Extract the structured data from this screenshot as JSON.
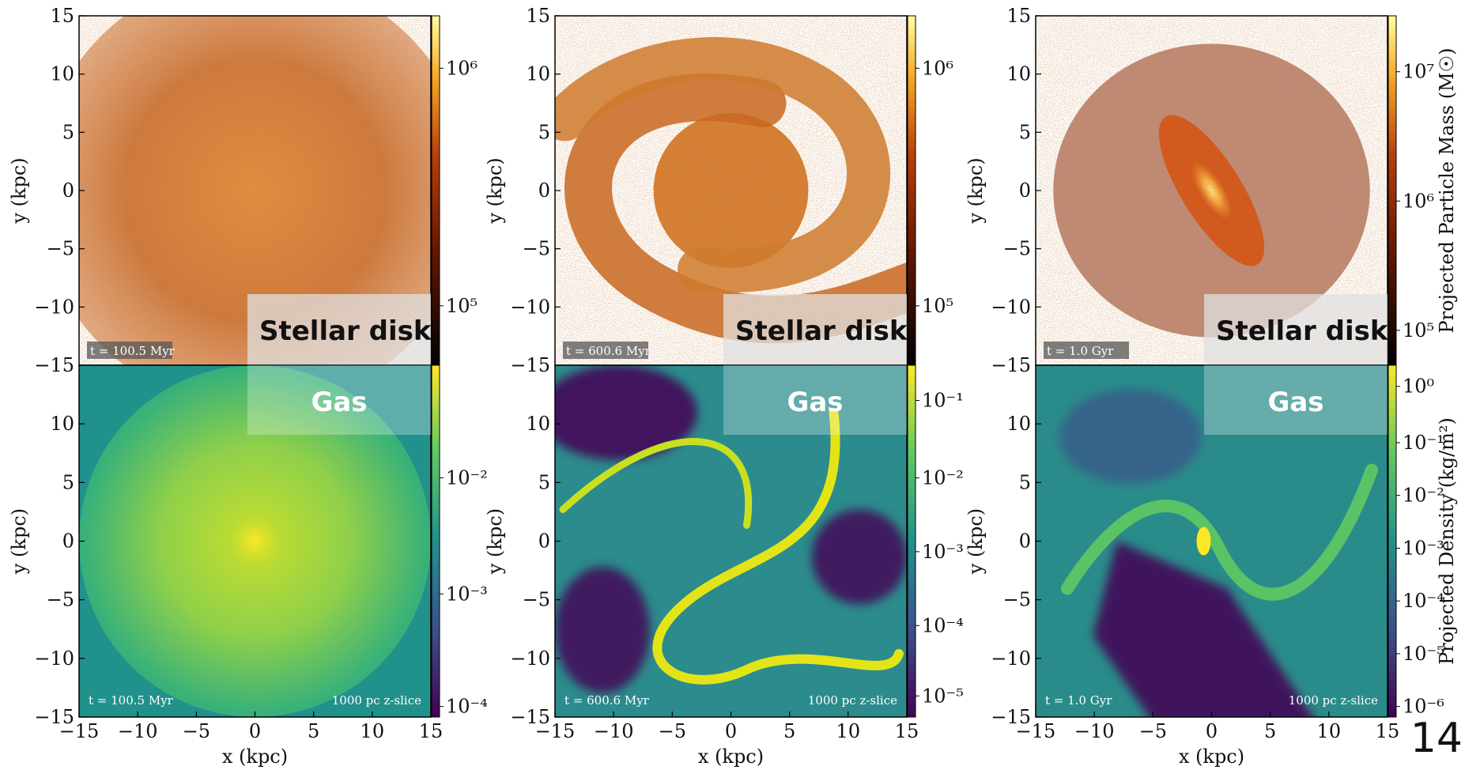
{
  "slide_number": "14",
  "colors": {
    "frame": "#000000",
    "gas_low": "#440154",
    "gas_mid": "#21918c",
    "gas_high": "#fde725",
    "star_low": "#000000",
    "star_mid": "#b8400b",
    "star_high": "#ffff9e"
  },
  "chart_data": [
    {
      "type": "heatmap",
      "panel": "stellar",
      "column": 0,
      "xlabel": "",
      "ylabel": "y  (kpc)",
      "xlim": [
        -15,
        15
      ],
      "ylim": [
        -15,
        15
      ],
      "yticks": [
        "15",
        "10",
        "5",
        "0",
        "−5",
        "−10",
        "−15"
      ],
      "time_label": "t = 100.5 Myr",
      "overlay_label": "Stellar disk",
      "colorbar": {
        "scale": "log",
        "ticks": [
          "10⁶",
          "10⁵"
        ],
        "title": ""
      },
      "morphology": "diffuse disk"
    },
    {
      "type": "heatmap",
      "panel": "gas",
      "column": 0,
      "xlabel": "x  (kpc)",
      "ylabel": "y  (kpc)",
      "xlim": [
        -15,
        15
      ],
      "ylim": [
        -15,
        15
      ],
      "xticks": [
        "−15",
        "−10",
        "−5",
        "0",
        "5",
        "10",
        "15"
      ],
      "yticks": [
        "10",
        "5",
        "0",
        "−5",
        "−10",
        "−15"
      ],
      "time_label": "t = 100.5 Myr",
      "slice_label": "1000 pc z-slice",
      "overlay_label": "Gas",
      "colorbar": {
        "scale": "log",
        "ticks": [
          "10⁻²",
          "10⁻³",
          "10⁻⁴"
        ],
        "title": ""
      },
      "morphology": "turbulent disk"
    },
    {
      "type": "heatmap",
      "panel": "stellar",
      "column": 1,
      "xlabel": "",
      "ylabel": "y  (kpc)",
      "xlim": [
        -15,
        15
      ],
      "ylim": [
        -15,
        15
      ],
      "yticks": [
        "15",
        "10",
        "5",
        "0",
        "−5",
        "−10",
        "−15"
      ],
      "time_label": "t = 600.6 Myr",
      "overlay_label": "Stellar disk",
      "colorbar": {
        "scale": "log",
        "ticks": [
          "10⁶",
          "10⁵"
        ],
        "title": ""
      },
      "morphology": "two-arm spiral"
    },
    {
      "type": "heatmap",
      "panel": "gas",
      "column": 1,
      "xlabel": "x  (kpc)",
      "ylabel": "y  (kpc)",
      "xlim": [
        -15,
        15
      ],
      "ylim": [
        -15,
        15
      ],
      "xticks": [
        "−15",
        "−10",
        "−5",
        "0",
        "5",
        "10",
        "15"
      ],
      "yticks": [
        "10",
        "5",
        "0",
        "−5",
        "−10",
        "−15"
      ],
      "time_label": "t = 600.6 Myr",
      "slice_label": "1000 pc z-slice",
      "overlay_label": "Gas",
      "colorbar": {
        "scale": "log",
        "ticks": [
          "10⁻¹",
          "10⁻²",
          "10⁻³",
          "10⁻⁴",
          "10⁻⁵"
        ],
        "title": ""
      },
      "morphology": "spiral filaments"
    },
    {
      "type": "heatmap",
      "panel": "stellar",
      "column": 2,
      "xlabel": "",
      "ylabel": "y  (kpc)",
      "xlim": [
        -15,
        15
      ],
      "ylim": [
        -15,
        15
      ],
      "yticks": [
        "15",
        "10",
        "5",
        "0",
        "−5",
        "−10",
        "−15"
      ],
      "time_label": "t = 1.0 Gyr",
      "overlay_label": "Stellar disk",
      "colorbar": {
        "scale": "log",
        "ticks": [
          "10⁷",
          "10⁶",
          "10⁵"
        ],
        "title": "Projected Particle Mass  (M☉)"
      },
      "morphology": "central bar"
    },
    {
      "type": "heatmap",
      "panel": "gas",
      "column": 2,
      "xlabel": "x  (kpc)",
      "ylabel": "y  (kpc)",
      "xlim": [
        -15,
        15
      ],
      "ylim": [
        -15,
        15
      ],
      "xticks": [
        "−15",
        "−10",
        "−5",
        "0",
        "5",
        "10",
        "15"
      ],
      "yticks": [
        "10",
        "5",
        "0",
        "−5",
        "−10",
        "−15"
      ],
      "time_label": "t = 1.0 Gyr",
      "slice_label": "1000 pc z-slice",
      "overlay_label": "Gas",
      "colorbar": {
        "scale": "log",
        "ticks": [
          "10⁰",
          "10⁻¹",
          "10⁻²",
          "10⁻³",
          "10⁻⁴",
          "10⁻⁵",
          "10⁻⁶"
        ],
        "title": "Projected Density  (kg/m²)"
      },
      "morphology": "bar-driven streams"
    }
  ]
}
